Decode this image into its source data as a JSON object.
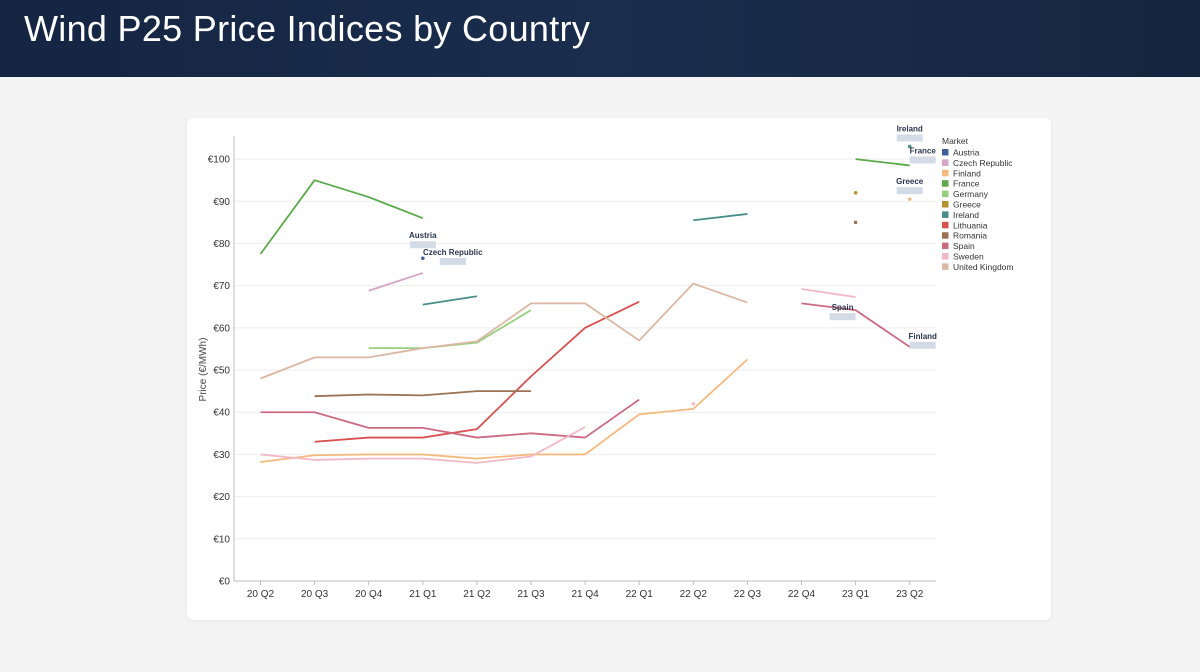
{
  "page": {
    "title": "Wind P25 Price Indices by Country"
  },
  "chart_data": {
    "type": "line",
    "title": "",
    "xlabel": "",
    "ylabel": "Price (€/MWh)",
    "ylim": [
      0,
      105
    ],
    "grid": true,
    "categories": [
      "20 Q2",
      "20 Q3",
      "20 Q4",
      "21 Q1",
      "21 Q2",
      "21 Q3",
      "21 Q4",
      "22 Q1",
      "22 Q2",
      "22 Q3",
      "22 Q4",
      "23 Q1",
      "23 Q2"
    ],
    "y_ticks": [
      {
        "v": 0,
        "label": "€0"
      },
      {
        "v": 10,
        "label": "€10"
      },
      {
        "v": 20,
        "label": "€20"
      },
      {
        "v": 30,
        "label": "€30"
      },
      {
        "v": 40,
        "label": "€40"
      },
      {
        "v": 50,
        "label": "€50"
      },
      {
        "v": 60,
        "label": "€60"
      },
      {
        "v": 70,
        "label": "€70"
      },
      {
        "v": 80,
        "label": "€80"
      },
      {
        "v": 90,
        "label": "€90"
      },
      {
        "v": 100,
        "label": "€100"
      }
    ],
    "legend_title": "Market",
    "legend_position": "top-right",
    "series": [
      {
        "name": "Austria",
        "color": "#3f5f9e",
        "values": [
          null,
          null,
          null,
          76.5,
          null,
          null,
          null,
          null,
          null,
          null,
          null,
          null,
          null
        ]
      },
      {
        "name": "Czech Republic",
        "color": "#d5a6c9",
        "values": [
          null,
          null,
          68.8,
          73.0,
          null,
          null,
          null,
          null,
          null,
          null,
          null,
          null,
          null
        ]
      },
      {
        "name": "Finland",
        "color": "#f4b97e",
        "values": [
          28.2,
          29.8,
          30.0,
          30.0,
          29.0,
          30.0,
          30.0,
          39.5,
          40.8,
          52.5,
          null,
          null,
          90.5
        ]
      },
      {
        "name": "France",
        "color": "#5aaa4a",
        "values": [
          77.5,
          95.0,
          91.0,
          86.0,
          null,
          null,
          null,
          null,
          null,
          null,
          null,
          100.0,
          98.5
        ]
      },
      {
        "name": "Germany",
        "color": "#96d07e",
        "values": [
          null,
          null,
          55.2,
          55.2,
          56.5,
          64.2,
          null,
          null,
          null,
          null,
          null,
          null,
          null
        ]
      },
      {
        "name": "Greece",
        "color": "#b5912f",
        "values": [
          null,
          null,
          null,
          null,
          null,
          null,
          null,
          null,
          null,
          null,
          null,
          92.0,
          null
        ]
      },
      {
        "name": "Ireland",
        "color": "#4a8e8a",
        "values": [
          null,
          null,
          null,
          65.5,
          67.5,
          null,
          null,
          null,
          85.5,
          87.0,
          null,
          null,
          103.0
        ]
      },
      {
        "name": "Lithuania",
        "color": "#d8514f",
        "values": [
          null,
          33.0,
          34.0,
          34.0,
          36.0,
          48.5,
          60.0,
          66.2,
          null,
          null,
          null,
          null,
          null
        ]
      },
      {
        "name": "Romania",
        "color": "#9c7254",
        "values": [
          null,
          43.8,
          44.2,
          44.0,
          45.0,
          45.0,
          null,
          null,
          null,
          null,
          null,
          85.0,
          null
        ]
      },
      {
        "name": "Spain",
        "color": "#cc6a82",
        "values": [
          40.0,
          40.0,
          36.3,
          36.3,
          34.0,
          35.0,
          34.0,
          43.0,
          null,
          null,
          65.8,
          64.2,
          55.5
        ]
      },
      {
        "name": "Sweden",
        "color": "#f3b8c6",
        "values": [
          30.0,
          28.7,
          29.0,
          29.0,
          28.0,
          29.5,
          36.5,
          null,
          42.0,
          null,
          69.2,
          67.3,
          null
        ]
      },
      {
        "name": "United Kingdom",
        "color": "#dcb7a3",
        "values": [
          48.0,
          53.0,
          53.0,
          55.2,
          56.8,
          65.8,
          65.8,
          57.0,
          70.5,
          66.0,
          null,
          null,
          null
        ]
      }
    ],
    "annotations": [
      {
        "text": "Ireland",
        "series": "Ireland",
        "category": "23 Q2"
      },
      {
        "text": "France",
        "series": "France",
        "category": "23 Q2"
      },
      {
        "text": "Greece",
        "series": "Finland",
        "category": "23 Q2"
      },
      {
        "text": "Austria",
        "series": "Austria",
        "category": "21 Q1"
      },
      {
        "text": "Czech Republic",
        "series": "Czech Republic",
        "category": "21 Q1"
      },
      {
        "text": "Finland",
        "series": "Spain",
        "category": "23 Q2"
      },
      {
        "text": "Spain",
        "series": "Spain",
        "category": "23 Q1"
      }
    ]
  }
}
